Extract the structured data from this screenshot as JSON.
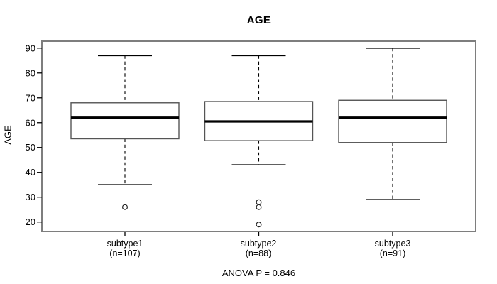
{
  "chart_data": {
    "type": "boxplot",
    "title": "AGE",
    "ylabel": "AGE",
    "annotation": "ANOVA P = 0.846",
    "ylim": [
      16.2,
      92.8
    ],
    "yticks": [
      20,
      30,
      40,
      50,
      60,
      70,
      80,
      90
    ],
    "grid": false,
    "legend": null,
    "groups": [
      {
        "label": "subtype1",
        "sublabel": "(n=107)",
        "n": 107,
        "whisker_low": 35,
        "q1": 53.5,
        "median": 62,
        "q3": 68,
        "whisker_high": 87,
        "outliers": [
          26
        ]
      },
      {
        "label": "subtype2",
        "sublabel": "(n=88)",
        "n": 88,
        "whisker_low": 43,
        "q1": 52.75,
        "median": 60.5,
        "q3": 68.5,
        "whisker_high": 87,
        "outliers": [
          28,
          26,
          19
        ]
      },
      {
        "label": "subtype3",
        "sublabel": "(n=91)",
        "n": 91,
        "whisker_low": 29,
        "q1": 52,
        "median": 62,
        "q3": 69,
        "whisker_high": 90,
        "outliers": []
      }
    ]
  },
  "colors": {
    "background": "#ffffff",
    "frame": "#7e7e7e",
    "box_border": "#555555",
    "box_fill": "#ffffff",
    "median": "#000000",
    "whisker": "#000000",
    "outlier": "#222222",
    "text": "#000000"
  }
}
